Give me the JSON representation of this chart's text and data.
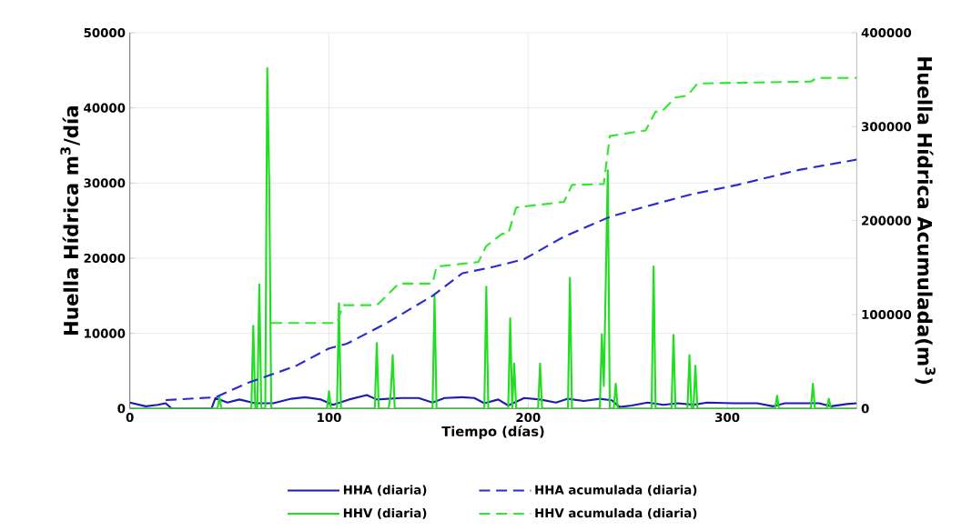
{
  "chart_data": {
    "type": "line",
    "xlabel": "Tiempo (días)",
    "ylabel": "Huella Hídrica m$^{3}$/día",
    "y2label": "Huella Hídrica Acumulada(m$^{3}$)",
    "xlim": [
      0,
      365
    ],
    "xticks": [
      0,
      100,
      200,
      300
    ],
    "ylim": [
      0,
      50000
    ],
    "yticks": [
      0,
      10000,
      20000,
      30000,
      40000,
      50000
    ],
    "y2lim": [
      0,
      400000
    ],
    "y2ticks": [
      0,
      100000,
      200000,
      300000,
      400000
    ],
    "grid": true,
    "legend": "bottom",
    "marker": "none",
    "series": [
      {
        "name": "HHA (diaria)",
        "color": "#1c1cb0",
        "axis": "y",
        "line_style": "solid",
        "x": [
          0,
          8,
          14,
          18,
          21,
          41,
          43,
          49,
          55,
          63,
          72,
          81,
          88,
          96,
          102,
          110,
          119,
          124,
          136,
          145,
          152,
          158,
          167,
          173,
          178,
          185,
          190,
          198,
          206,
          214,
          220,
          228,
          236,
          242,
          246,
          252,
          260,
          268,
          275,
          283,
          290,
          303,
          315,
          323,
          329,
          337,
          346,
          352,
          360,
          365
        ],
        "values": [
          800,
          300,
          500,
          700,
          0,
          0,
          1400,
          800,
          1200,
          700,
          700,
          1300,
          1500,
          1200,
          500,
          1200,
          1800,
          1200,
          1400,
          1400,
          800,
          1400,
          1500,
          1400,
          700,
          1200,
          400,
          1400,
          1200,
          800,
          1300,
          1000,
          1300,
          1100,
          200,
          400,
          800,
          500,
          700,
          500,
          800,
          700,
          700,
          300,
          700,
          700,
          700,
          300,
          600,
          700
        ]
      },
      {
        "name": "HHA acumulada (diaria)",
        "color": "#2a2ad0",
        "axis": "y2",
        "line_style": "dashed",
        "x": [
          18,
          43,
          60,
          67,
          83,
          100,
          109,
          129,
          152,
          167,
          183,
          198,
          218,
          241,
          259,
          282,
          305,
          336,
          365
        ],
        "values": [
          9000,
          12000,
          28000,
          33000,
          45000,
          64000,
          69000,
          91000,
          120000,
          144000,
          151000,
          159000,
          183000,
          204000,
          215000,
          228000,
          238000,
          254000,
          265000
        ]
      },
      {
        "name": "HHV (diaria)",
        "color": "#22dd22",
        "axis": "y",
        "line_style": "solid",
        "x": [
          0,
          44,
          45,
          46,
          61,
          62,
          63,
          64,
          65,
          66,
          68,
          69,
          70,
          71,
          99,
          100,
          101,
          104,
          105,
          106,
          123,
          124,
          125,
          130,
          131,
          132,
          133,
          152,
          153,
          154,
          178,
          179,
          180,
          190,
          191,
          192,
          193,
          194,
          205,
          206,
          207,
          220,
          221,
          222,
          236,
          237,
          238,
          239,
          240,
          241,
          243,
          244,
          245,
          262,
          263,
          264,
          272,
          273,
          274,
          280,
          281,
          282,
          283,
          284,
          285,
          324,
          325,
          326,
          342,
          343,
          344,
          350,
          351,
          352,
          365
        ],
        "values": [
          0,
          0,
          1500,
          0,
          0,
          11000,
          0,
          0,
          16500,
          0,
          0,
          45300,
          30000,
          0,
          0,
          2300,
          0,
          0,
          14000,
          0,
          0,
          8700,
          0,
          0,
          2000,
          7100,
          0,
          0,
          15000,
          0,
          0,
          16200,
          0,
          0,
          12000,
          0,
          6000,
          0,
          0,
          6000,
          0,
          0,
          17400,
          0,
          0,
          9900,
          3000,
          17000,
          31700,
          0,
          0,
          3300,
          0,
          0,
          18900,
          0,
          0,
          9800,
          0,
          0,
          7100,
          0,
          0,
          5700,
          0,
          0,
          1700,
          0,
          0,
          3300,
          0,
          0,
          1300,
          0,
          0
        ]
      },
      {
        "name": "HHV acumulada (diaria)",
        "color": "#33e633",
        "axis": "y2",
        "line_style": "dashed",
        "x": [
          71,
          104,
          107,
          124,
          128,
          135,
          152,
          154,
          175,
          179,
          187,
          190,
          194,
          218,
          222,
          238,
          241,
          259,
          264,
          267,
          274,
          280,
          285,
          342,
          345,
          365
        ],
        "values": [
          91000,
          91000,
          110000,
          110000,
          118000,
          133000,
          133000,
          151000,
          156000,
          173000,
          186000,
          186000,
          214000,
          220000,
          238000,
          239000,
          290000,
          296000,
          316000,
          316000,
          331000,
          333000,
          346000,
          348000,
          352000,
          352000
        ]
      }
    ]
  }
}
